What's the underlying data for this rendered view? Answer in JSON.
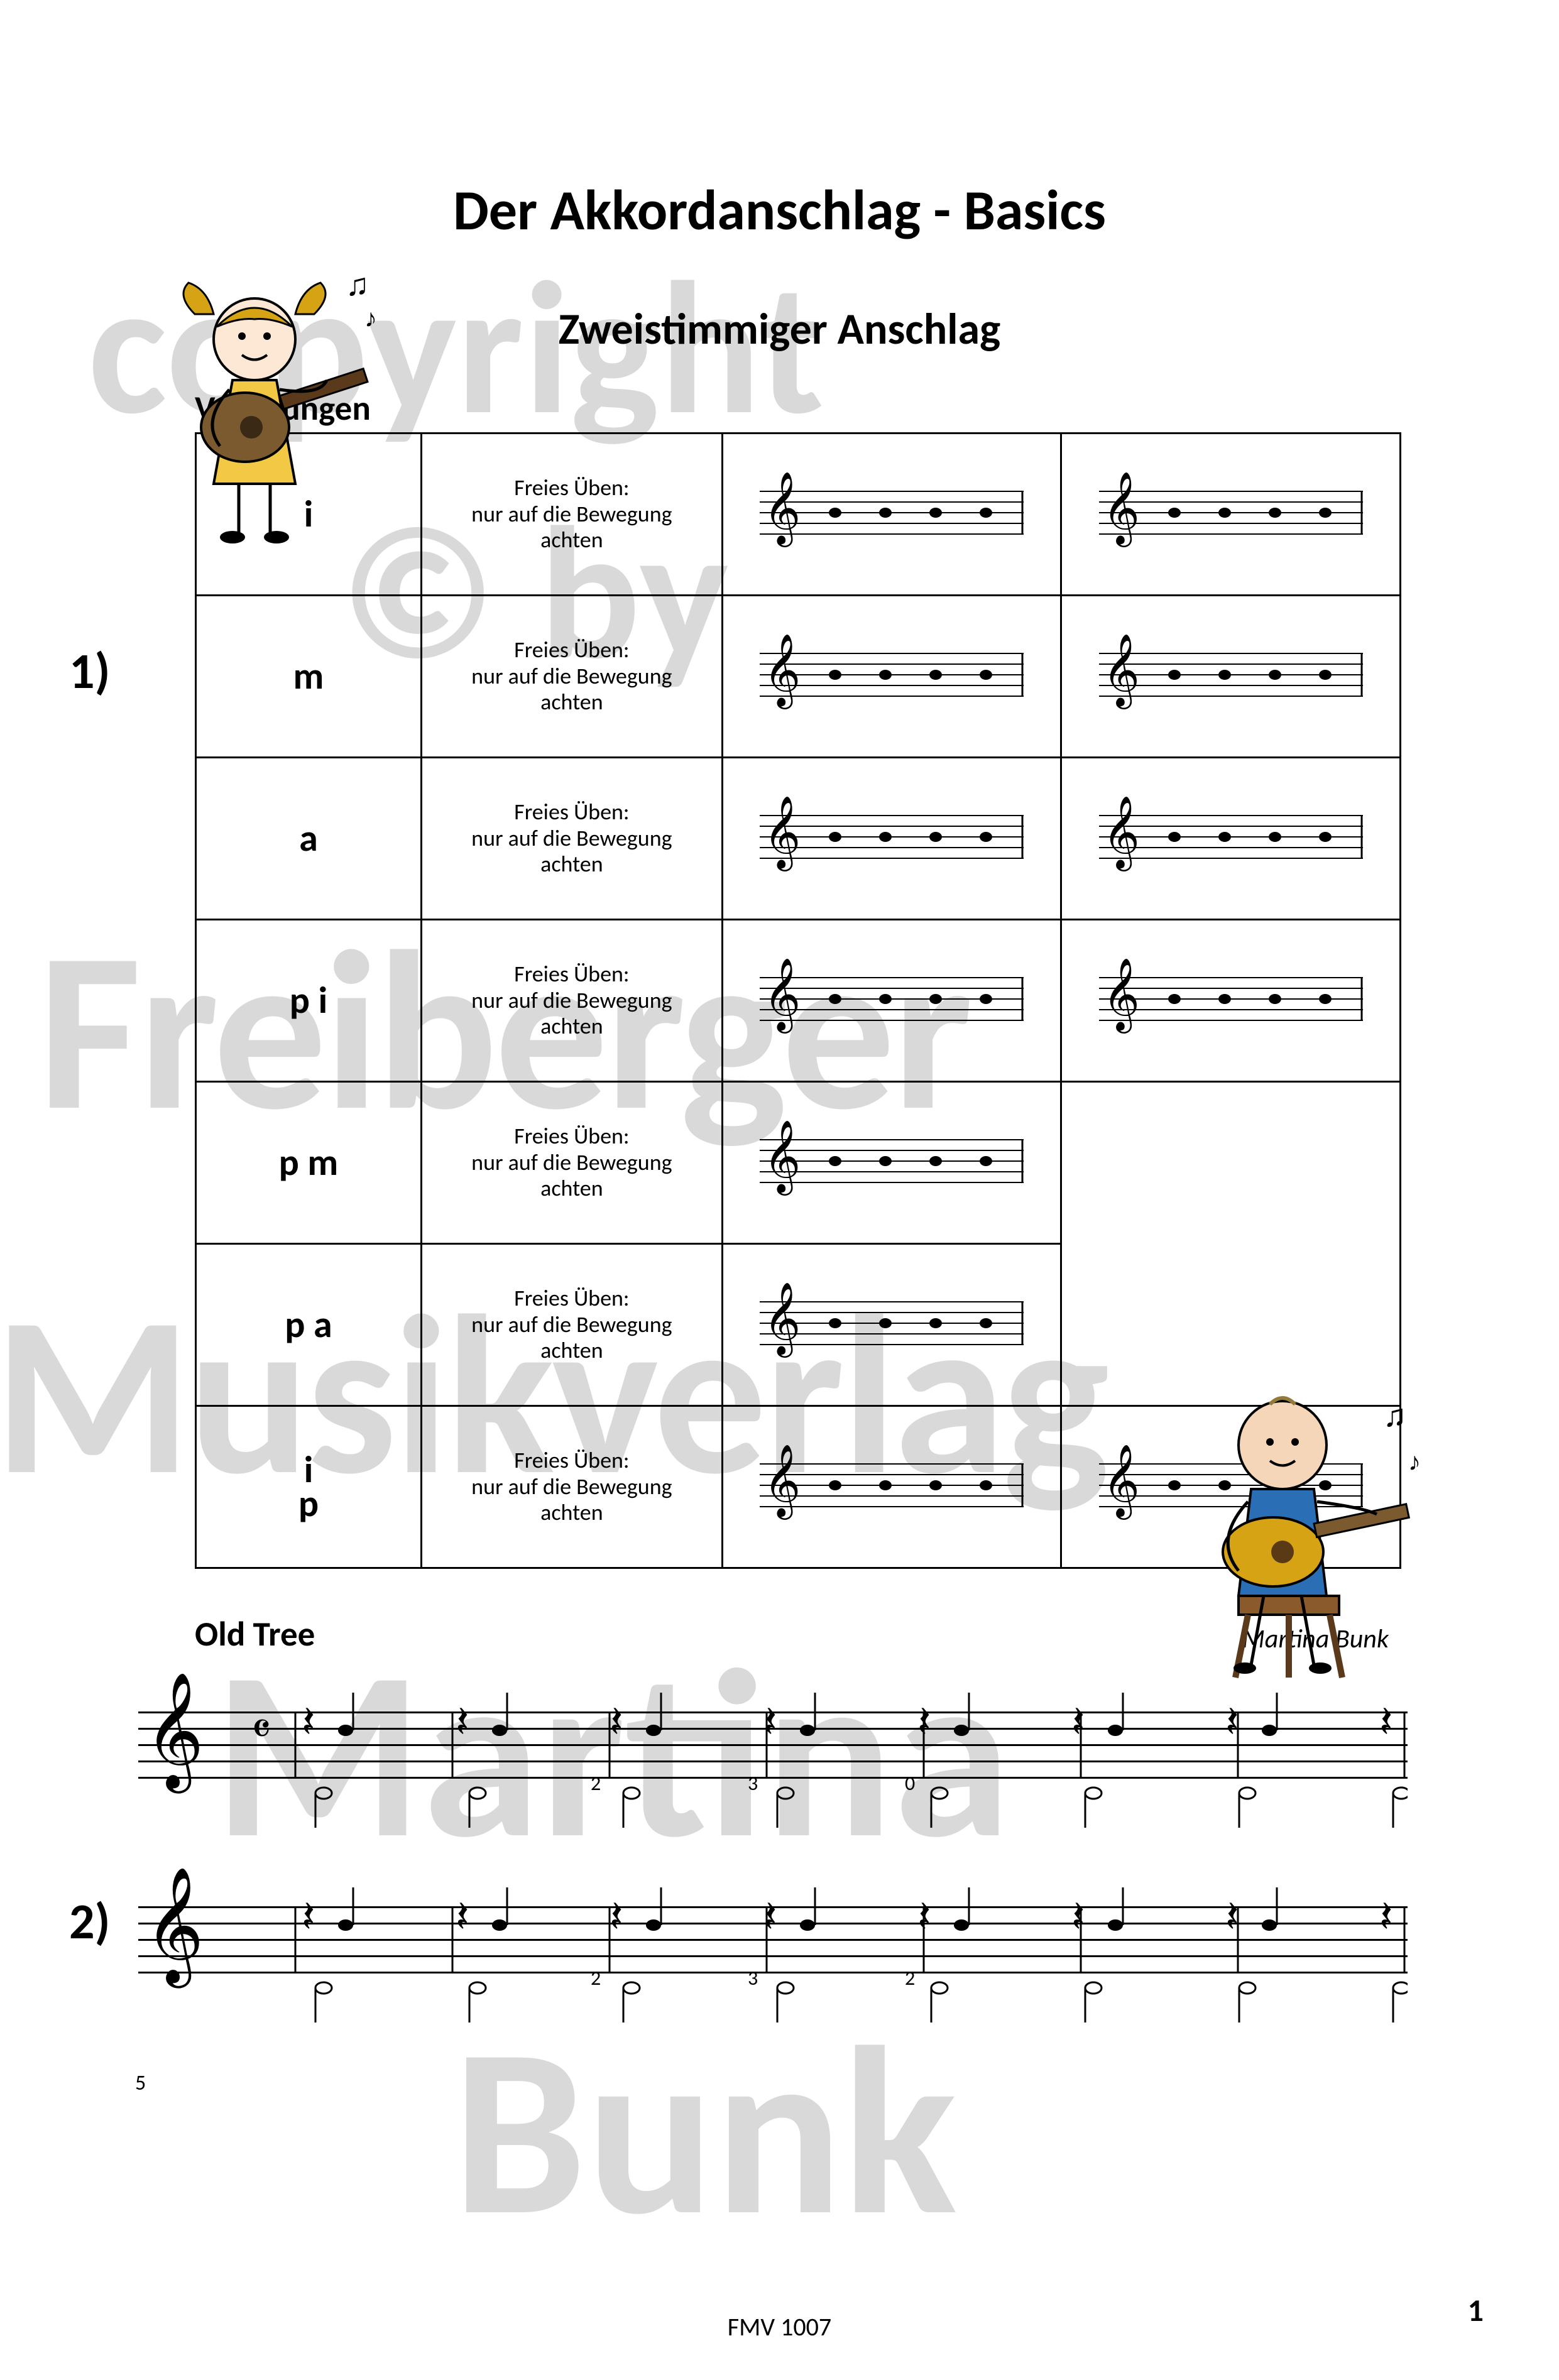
{
  "watermarks": {
    "copyright": "copyright",
    "cby": "© by",
    "freiberger": "Freiberger",
    "musikverlag": "Musikverlag",
    "martina": "Martina",
    "bunk": "Bunk"
  },
  "title": "Der Akkordanschlag - Basics",
  "subtitle": "Zweistimmiger Anschlag",
  "section_label": "Vorübungen",
  "exercise_numbers": {
    "one": "1)",
    "two": "2)"
  },
  "instruction_text": "Freies Üben:\nnur auf die Bewegung\nachten",
  "table_rows": [
    {
      "finger": "i",
      "has_staff2": true
    },
    {
      "finger": "m",
      "has_staff2": true
    },
    {
      "finger": "a",
      "has_staff2": true
    },
    {
      "finger": "p i",
      "has_staff2": true
    },
    {
      "finger": "p m",
      "has_staff2": false
    },
    {
      "finger": "p a",
      "has_staff2": false
    },
    {
      "finger_stack": [
        "i",
        "p"
      ],
      "has_staff2": true
    }
  ],
  "song": {
    "title": "Old Tree",
    "composer": "Martina Bunk",
    "time_signature": "4/4",
    "bar_number_5": "5",
    "fingerings_line1": [
      "2",
      "3",
      "0"
    ],
    "fingerings_line2": [
      "2",
      "3",
      "2"
    ]
  },
  "footer": {
    "code": "FMV 1007",
    "page_number": "1"
  },
  "colors": {
    "text": "#000000",
    "watermark": "#d9d9d9",
    "background": "#ffffff",
    "girl_dress": "#f3c844",
    "girl_hair": "#d6a315",
    "guitar_body": "#7a5a2e",
    "boy_shirt": "#2a6fb5",
    "boy_skin": "#f5d6b8",
    "stool": "#8b5a2b"
  }
}
